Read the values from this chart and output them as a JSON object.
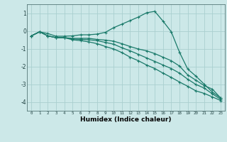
{
  "xlabel": "Humidex (Indice chaleur)",
  "bg_color": "#cce8e8",
  "grid_color": "#aacfcf",
  "line_color": "#1a7a6a",
  "xlim": [
    -0.5,
    23.5
  ],
  "ylim": [
    -4.5,
    1.5
  ],
  "yticks": [
    -4,
    -3,
    -2,
    -1,
    0,
    1
  ],
  "xticks": [
    0,
    1,
    2,
    3,
    4,
    5,
    6,
    7,
    8,
    9,
    10,
    11,
    12,
    13,
    14,
    15,
    16,
    17,
    18,
    19,
    20,
    21,
    22,
    23
  ],
  "line1_x": [
    0,
    1,
    2,
    3,
    4,
    5,
    6,
    7,
    8,
    9,
    10,
    11,
    12,
    13,
    14,
    15,
    16,
    17,
    18,
    19,
    20,
    21,
    22,
    23
  ],
  "line1_y": [
    -0.28,
    -0.05,
    -0.15,
    -0.3,
    -0.3,
    -0.28,
    -0.22,
    -0.22,
    -0.18,
    -0.08,
    0.18,
    0.38,
    0.58,
    0.78,
    1.02,
    1.1,
    0.55,
    -0.05,
    -1.2,
    -2.15,
    -2.55,
    -3.0,
    -3.45,
    -3.78
  ],
  "line2_x": [
    0,
    1,
    2,
    3,
    4,
    5,
    6,
    7,
    8,
    9,
    10,
    11,
    12,
    13,
    14,
    15,
    16,
    17,
    18,
    19,
    20,
    21,
    22,
    23
  ],
  "line2_y": [
    -0.28,
    -0.05,
    -0.28,
    -0.38,
    -0.38,
    -0.42,
    -0.42,
    -0.42,
    -0.48,
    -0.52,
    -0.58,
    -0.72,
    -0.88,
    -1.02,
    -1.12,
    -1.28,
    -1.48,
    -1.68,
    -1.98,
    -2.48,
    -2.78,
    -3.08,
    -3.28,
    -3.78
  ],
  "line3_x": [
    0,
    1,
    2,
    3,
    4,
    5,
    6,
    7,
    8,
    9,
    10,
    11,
    12,
    13,
    14,
    15,
    16,
    17,
    18,
    19,
    20,
    21,
    22,
    23
  ],
  "line3_y": [
    -0.28,
    -0.05,
    -0.28,
    -0.38,
    -0.38,
    -0.45,
    -0.48,
    -0.5,
    -0.55,
    -0.65,
    -0.75,
    -0.95,
    -1.12,
    -1.32,
    -1.52,
    -1.72,
    -1.92,
    -2.12,
    -2.38,
    -2.72,
    -3.02,
    -3.22,
    -3.55,
    -3.85
  ],
  "line4_x": [
    0,
    1,
    2,
    3,
    4,
    5,
    6,
    7,
    8,
    9,
    10,
    11,
    12,
    13,
    14,
    15,
    16,
    17,
    18,
    19,
    20,
    21,
    22,
    23
  ],
  "line4_y": [
    -0.28,
    -0.05,
    -0.28,
    -0.38,
    -0.38,
    -0.5,
    -0.55,
    -0.62,
    -0.72,
    -0.88,
    -1.02,
    -1.22,
    -1.48,
    -1.68,
    -1.92,
    -2.12,
    -2.38,
    -2.62,
    -2.88,
    -3.12,
    -3.38,
    -3.52,
    -3.72,
    -3.92
  ]
}
